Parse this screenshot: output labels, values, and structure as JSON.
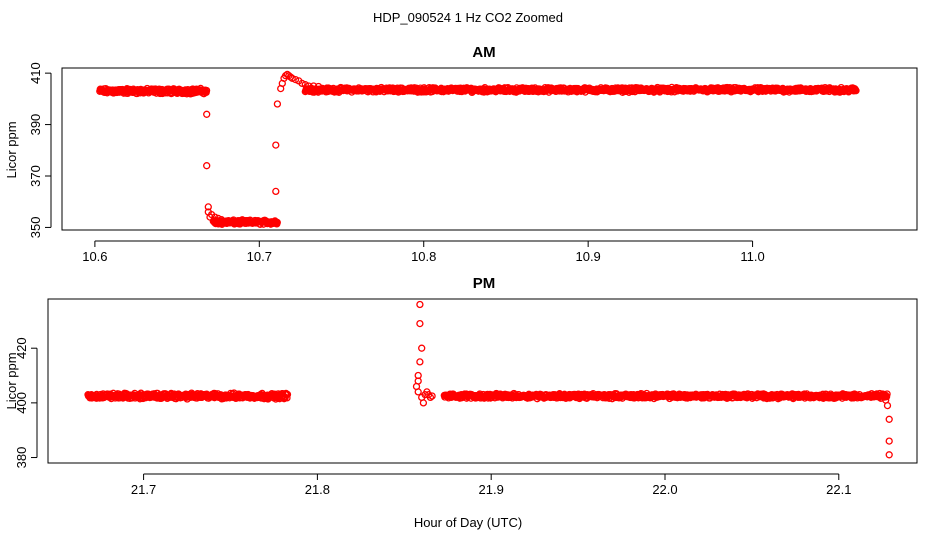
{
  "figure": {
    "title": "HDP_090524  1 Hz CO2 Zoomed",
    "xlabel": "Hour of Day (UTC)"
  },
  "colors": {
    "points": "#ff0000",
    "axis": "#000000",
    "background": "#ffffff"
  },
  "chart_data": [
    {
      "type": "scatter",
      "title": "AM",
      "xlabel": "Hour of Day (UTC)",
      "ylabel": "Licor ppm",
      "xlim": [
        10.58,
        11.1
      ],
      "ylim": [
        349,
        412
      ],
      "x_ticks": [
        10.6,
        10.7,
        10.8,
        10.9,
        11.0
      ],
      "x_tick_labels": [
        "10.6",
        "10.7",
        "10.8",
        "10.9",
        "11.0"
      ],
      "y_ticks": [
        350,
        370,
        390,
        410
      ],
      "y_tick_labels": [
        "350",
        "370",
        "390",
        "410"
      ],
      "grid": false,
      "marker": "open-circle",
      "series": [
        {
          "segments": [
            {
              "x": [
                10.603,
                10.668
              ],
              "y": 403,
              "noise": 1.2
            },
            {
              "x": [
                10.672,
                10.711
              ],
              "y": 352,
              "noise": 1.0
            },
            {
              "x": [
                10.728,
                11.063
              ],
              "y": 403.5,
              "noise": 1.0
            }
          ],
          "points": [
            [
              10.668,
              394
            ],
            [
              10.668,
              374
            ],
            [
              10.669,
              358
            ],
            [
              10.669,
              356
            ],
            [
              10.67,
              354
            ],
            [
              10.671,
              355
            ],
            [
              10.673,
              354
            ],
            [
              10.675,
              353.5
            ],
            [
              10.677,
              353
            ],
            [
              10.68,
              352.5
            ],
            [
              10.71,
              364
            ],
            [
              10.71,
              382
            ],
            [
              10.711,
              398
            ],
            [
              10.713,
              404
            ],
            [
              10.714,
              406
            ],
            [
              10.715,
              408
            ],
            [
              10.716,
              409
            ],
            [
              10.717,
              409.5
            ],
            [
              10.718,
              409
            ],
            [
              10.719,
              408.5
            ],
            [
              10.72,
              408
            ],
            [
              10.722,
              407.5
            ],
            [
              10.724,
              407
            ],
            [
              10.726,
              406
            ],
            [
              10.728,
              405.5
            ],
            [
              10.73,
              405
            ],
            [
              10.733,
              405
            ],
            [
              10.736,
              404.8
            ]
          ]
        }
      ]
    },
    {
      "type": "scatter",
      "title": "PM",
      "xlabel": "Hour of Day (UTC)",
      "ylabel": "Licor ppm",
      "xlim": [
        21.645,
        22.145
      ],
      "ylim": [
        378,
        438
      ],
      "x_ticks": [
        21.7,
        21.8,
        21.9,
        22.0,
        22.1
      ],
      "x_tick_labels": [
        "21.7",
        "21.8",
        "21.9",
        "22.0",
        "22.1"
      ],
      "y_ticks": [
        380,
        400,
        420
      ],
      "y_tick_labels": [
        "380",
        "400",
        "420"
      ],
      "grid": false,
      "marker": "open-circle",
      "series": [
        {
          "segments": [
            {
              "x": [
                21.668,
                21.783
              ],
              "y": 402.5,
              "noise": 1.2
            },
            {
              "x": [
                21.873,
                22.128
              ],
              "y": 402.5,
              "noise": 1.0
            }
          ],
          "points": [
            [
              21.859,
              436
            ],
            [
              21.859,
              429
            ],
            [
              21.86,
              420
            ],
            [
              21.859,
              415
            ],
            [
              21.858,
              410
            ],
            [
              21.858,
              408
            ],
            [
              21.857,
              406
            ],
            [
              21.858,
              404
            ],
            [
              21.86,
              402
            ],
            [
              21.861,
              400
            ],
            [
              21.862,
              403
            ],
            [
              21.863,
              404
            ],
            [
              21.864,
              403
            ],
            [
              21.865,
              402
            ],
            [
              21.866,
              402.5
            ],
            [
              22.127,
              401
            ],
            [
              22.128,
              399
            ],
            [
              22.129,
              394
            ],
            [
              22.129,
              386
            ],
            [
              22.129,
              381
            ]
          ]
        }
      ]
    }
  ]
}
